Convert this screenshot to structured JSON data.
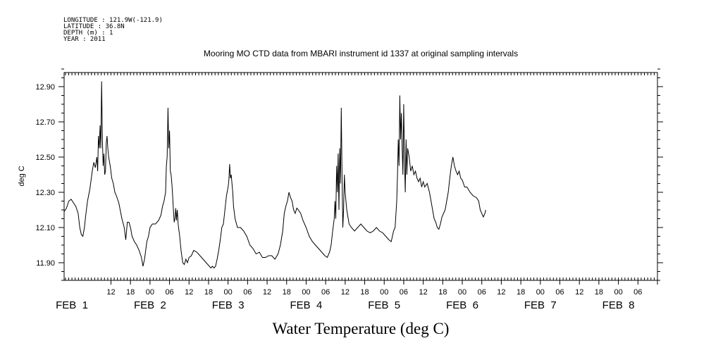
{
  "header": {
    "longitude": "LONGITUDE : 121.9W(-121.9)",
    "latitude": "LATITUDE : 36.8N",
    "depth": "DEPTH (m) : 1",
    "year": "YEAR : 2011"
  },
  "chart_data": {
    "type": "line",
    "title": "Mooring MO CTD data from MBARI instrument id 1337 at original sampling intervals",
    "xlabel": "Water Temperature (deg C)",
    "ylabel": "deg C",
    "ylim": [
      11.8,
      12.98
    ],
    "yticks": [
      "11.90",
      "12.10",
      "12.30",
      "12.50",
      "12.70",
      "12.90"
    ],
    "xlim": [
      -0.1,
      7.5
    ],
    "x_hour_ticks": [
      "12",
      "18",
      "00",
      "06",
      "12",
      "18",
      "00",
      "06",
      "12",
      "18",
      "00",
      "06",
      "12",
      "18",
      "00",
      "06",
      "12",
      "18",
      "00",
      "06",
      "12",
      "18",
      "00",
      "06",
      "12",
      "18",
      "00",
      "06"
    ],
    "x_day_labels": [
      "FEB  1",
      "FEB  2",
      "FEB  3",
      "FEB  4",
      "FEB  5",
      "FEB  6",
      "FEB  7",
      "FEB  8"
    ],
    "x_unit": "days since FEB 1 00:00",
    "grid": false,
    "series": [
      {
        "points": [
          [
            -0.1,
            12.19
          ],
          [
            -0.07,
            12.21
          ],
          [
            -0.04,
            12.25
          ],
          [
            -0.01,
            12.26
          ],
          [
            0.02,
            12.24
          ],
          [
            0.05,
            12.22
          ],
          [
            0.08,
            12.18
          ],
          [
            0.1,
            12.1
          ],
          [
            0.12,
            12.06
          ],
          [
            0.14,
            12.05
          ],
          [
            0.16,
            12.1
          ],
          [
            0.18,
            12.18
          ],
          [
            0.2,
            12.25
          ],
          [
            0.23,
            12.32
          ],
          [
            0.26,
            12.42
          ],
          [
            0.28,
            12.47
          ],
          [
            0.3,
            12.44
          ],
          [
            0.32,
            12.5
          ],
          [
            0.33,
            12.42
          ],
          [
            0.34,
            12.62
          ],
          [
            0.35,
            12.55
          ],
          [
            0.36,
            12.68
          ],
          [
            0.37,
            12.55
          ],
          [
            0.38,
            12.93
          ],
          [
            0.39,
            12.6
          ],
          [
            0.4,
            12.45
          ],
          [
            0.41,
            12.52
          ],
          [
            0.42,
            12.4
          ],
          [
            0.43,
            12.42
          ],
          [
            0.44,
            12.58
          ],
          [
            0.45,
            12.62
          ],
          [
            0.46,
            12.55
          ],
          [
            0.47,
            12.5
          ],
          [
            0.49,
            12.45
          ],
          [
            0.51,
            12.38
          ],
          [
            0.53,
            12.35
          ],
          [
            0.55,
            12.3
          ],
          [
            0.57,
            12.28
          ],
          [
            0.6,
            12.24
          ],
          [
            0.64,
            12.15
          ],
          [
            0.67,
            12.1
          ],
          [
            0.69,
            12.03
          ],
          [
            0.71,
            12.13
          ],
          [
            0.73,
            12.13
          ],
          [
            0.75,
            12.1
          ],
          [
            0.77,
            12.05
          ],
          [
            0.8,
            12.02
          ],
          [
            0.83,
            12.0
          ],
          [
            0.86,
            11.97
          ],
          [
            0.89,
            11.93
          ],
          [
            0.91,
            11.88
          ],
          [
            0.93,
            11.92
          ],
          [
            0.96,
            12.02
          ],
          [
            0.98,
            12.05
          ],
          [
            1.0,
            12.1
          ],
          [
            1.03,
            12.12
          ],
          [
            1.07,
            12.12
          ],
          [
            1.11,
            12.14
          ],
          [
            1.14,
            12.17
          ],
          [
            1.16,
            12.22
          ],
          [
            1.18,
            12.25
          ],
          [
            1.2,
            12.3
          ],
          [
            1.21,
            12.45
          ],
          [
            1.22,
            12.5
          ],
          [
            1.23,
            12.78
          ],
          [
            1.24,
            12.55
          ],
          [
            1.25,
            12.65
          ],
          [
            1.26,
            12.42
          ],
          [
            1.27,
            12.4
          ],
          [
            1.28,
            12.35
          ],
          [
            1.29,
            12.28
          ],
          [
            1.3,
            12.2
          ],
          [
            1.31,
            12.13
          ],
          [
            1.32,
            12.15
          ],
          [
            1.33,
            12.21
          ],
          [
            1.34,
            12.14
          ],
          [
            1.35,
            12.2
          ],
          [
            1.36,
            12.12
          ],
          [
            1.38,
            12.05
          ],
          [
            1.4,
            11.96
          ],
          [
            1.42,
            11.9
          ],
          [
            1.44,
            11.89
          ],
          [
            1.46,
            11.92
          ],
          [
            1.48,
            11.9
          ],
          [
            1.5,
            11.93
          ],
          [
            1.53,
            11.94
          ],
          [
            1.56,
            11.97
          ],
          [
            1.6,
            11.96
          ],
          [
            1.64,
            11.94
          ],
          [
            1.68,
            11.92
          ],
          [
            1.72,
            11.9
          ],
          [
            1.76,
            11.88
          ],
          [
            1.78,
            11.87
          ],
          [
            1.8,
            11.88
          ],
          [
            1.82,
            11.87
          ],
          [
            1.84,
            11.88
          ],
          [
            1.86,
            11.92
          ],
          [
            1.88,
            11.97
          ],
          [
            1.9,
            12.03
          ],
          [
            1.92,
            12.1
          ],
          [
            1.94,
            12.12
          ],
          [
            1.96,
            12.2
          ],
          [
            1.98,
            12.28
          ],
          [
            2.0,
            12.33
          ],
          [
            2.01,
            12.37
          ],
          [
            2.02,
            12.46
          ],
          [
            2.03,
            12.38
          ],
          [
            2.04,
            12.4
          ],
          [
            2.05,
            12.35
          ],
          [
            2.06,
            12.3
          ],
          [
            2.07,
            12.22
          ],
          [
            2.09,
            12.15
          ],
          [
            2.12,
            12.1
          ],
          [
            2.16,
            12.1
          ],
          [
            2.2,
            12.08
          ],
          [
            2.24,
            12.05
          ],
          [
            2.28,
            12.0
          ],
          [
            2.32,
            11.98
          ],
          [
            2.36,
            11.95
          ],
          [
            2.4,
            11.96
          ],
          [
            2.44,
            11.93
          ],
          [
            2.48,
            11.93
          ],
          [
            2.52,
            11.94
          ],
          [
            2.56,
            11.94
          ],
          [
            2.6,
            11.92
          ],
          [
            2.64,
            11.95
          ],
          [
            2.67,
            12.0
          ],
          [
            2.7,
            12.08
          ],
          [
            2.72,
            12.18
          ],
          [
            2.74,
            12.22
          ],
          [
            2.76,
            12.25
          ],
          [
            2.78,
            12.3
          ],
          [
            2.8,
            12.27
          ],
          [
            2.82,
            12.25
          ],
          [
            2.84,
            12.2
          ],
          [
            2.86,
            12.18
          ],
          [
            2.88,
            12.21
          ],
          [
            2.9,
            12.2
          ],
          [
            2.93,
            12.18
          ],
          [
            2.96,
            12.14
          ],
          [
            3.0,
            12.1
          ],
          [
            3.04,
            12.05
          ],
          [
            3.08,
            12.02
          ],
          [
            3.12,
            12.0
          ],
          [
            3.16,
            11.98
          ],
          [
            3.2,
            11.96
          ],
          [
            3.24,
            11.94
          ],
          [
            3.27,
            11.93
          ],
          [
            3.3,
            11.96
          ],
          [
            3.32,
            12.0
          ],
          [
            3.34,
            12.08
          ],
          [
            3.36,
            12.15
          ],
          [
            3.37,
            12.25
          ],
          [
            3.38,
            12.15
          ],
          [
            3.39,
            12.45
          ],
          [
            3.4,
            12.3
          ],
          [
            3.41,
            12.52
          ],
          [
            3.42,
            12.2
          ],
          [
            3.43,
            12.55
          ],
          [
            3.44,
            12.35
          ],
          [
            3.45,
            12.78
          ],
          [
            3.46,
            12.4
          ],
          [
            3.47,
            12.1
          ],
          [
            3.48,
            12.2
          ],
          [
            3.49,
            12.4
          ],
          [
            3.5,
            12.3
          ],
          [
            3.52,
            12.2
          ],
          [
            3.55,
            12.12
          ],
          [
            3.58,
            12.1
          ],
          [
            3.62,
            12.08
          ],
          [
            3.66,
            12.1
          ],
          [
            3.7,
            12.12
          ],
          [
            3.74,
            12.1
          ],
          [
            3.78,
            12.08
          ],
          [
            3.82,
            12.07
          ],
          [
            3.86,
            12.08
          ],
          [
            3.9,
            12.1
          ],
          [
            3.94,
            12.08
          ],
          [
            3.98,
            12.07
          ],
          [
            4.02,
            12.05
          ],
          [
            4.06,
            12.03
          ],
          [
            4.09,
            12.02
          ],
          [
            4.12,
            12.08
          ],
          [
            4.14,
            12.1
          ],
          [
            4.16,
            12.25
          ],
          [
            4.17,
            12.4
          ],
          [
            4.18,
            12.6
          ],
          [
            4.19,
            12.45
          ],
          [
            4.2,
            12.85
          ],
          [
            4.21,
            12.6
          ],
          [
            4.22,
            12.75
          ],
          [
            4.23,
            12.55
          ],
          [
            4.24,
            12.4
          ],
          [
            4.25,
            12.8
          ],
          [
            4.26,
            12.5
          ],
          [
            4.27,
            12.3
          ],
          [
            4.28,
            12.6
          ],
          [
            4.29,
            12.4
          ],
          [
            4.3,
            12.55
          ],
          [
            4.32,
            12.5
          ],
          [
            4.34,
            12.42
          ],
          [
            4.36,
            12.45
          ],
          [
            4.38,
            12.4
          ],
          [
            4.4,
            12.42
          ],
          [
            4.42,
            12.38
          ],
          [
            4.44,
            12.36
          ],
          [
            4.46,
            12.38
          ],
          [
            4.48,
            12.33
          ],
          [
            4.5,
            12.36
          ],
          [
            4.52,
            12.33
          ],
          [
            4.55,
            12.35
          ],
          [
            4.58,
            12.3
          ],
          [
            4.6,
            12.25
          ],
          [
            4.62,
            12.2
          ],
          [
            4.64,
            12.15
          ],
          [
            4.66,
            12.13
          ],
          [
            4.68,
            12.1
          ],
          [
            4.7,
            12.09
          ],
          [
            4.72,
            12.12
          ],
          [
            4.74,
            12.16
          ],
          [
            4.76,
            12.18
          ],
          [
            4.78,
            12.2
          ],
          [
            4.8,
            12.25
          ],
          [
            4.82,
            12.3
          ],
          [
            4.84,
            12.38
          ],
          [
            4.86,
            12.45
          ],
          [
            4.88,
            12.5
          ],
          [
            4.9,
            12.45
          ],
          [
            4.92,
            12.42
          ],
          [
            4.94,
            12.4
          ],
          [
            4.96,
            12.42
          ],
          [
            4.98,
            12.38
          ],
          [
            5.0,
            12.37
          ],
          [
            5.03,
            12.33
          ],
          [
            5.06,
            12.33
          ],
          [
            5.1,
            12.3
          ],
          [
            5.14,
            12.28
          ],
          [
            5.18,
            12.27
          ],
          [
            5.21,
            12.25
          ],
          [
            5.23,
            12.2
          ],
          [
            5.25,
            12.18
          ],
          [
            5.27,
            12.16
          ],
          [
            5.29,
            12.18
          ],
          [
            5.3,
            12.2
          ]
        ]
      }
    ]
  }
}
